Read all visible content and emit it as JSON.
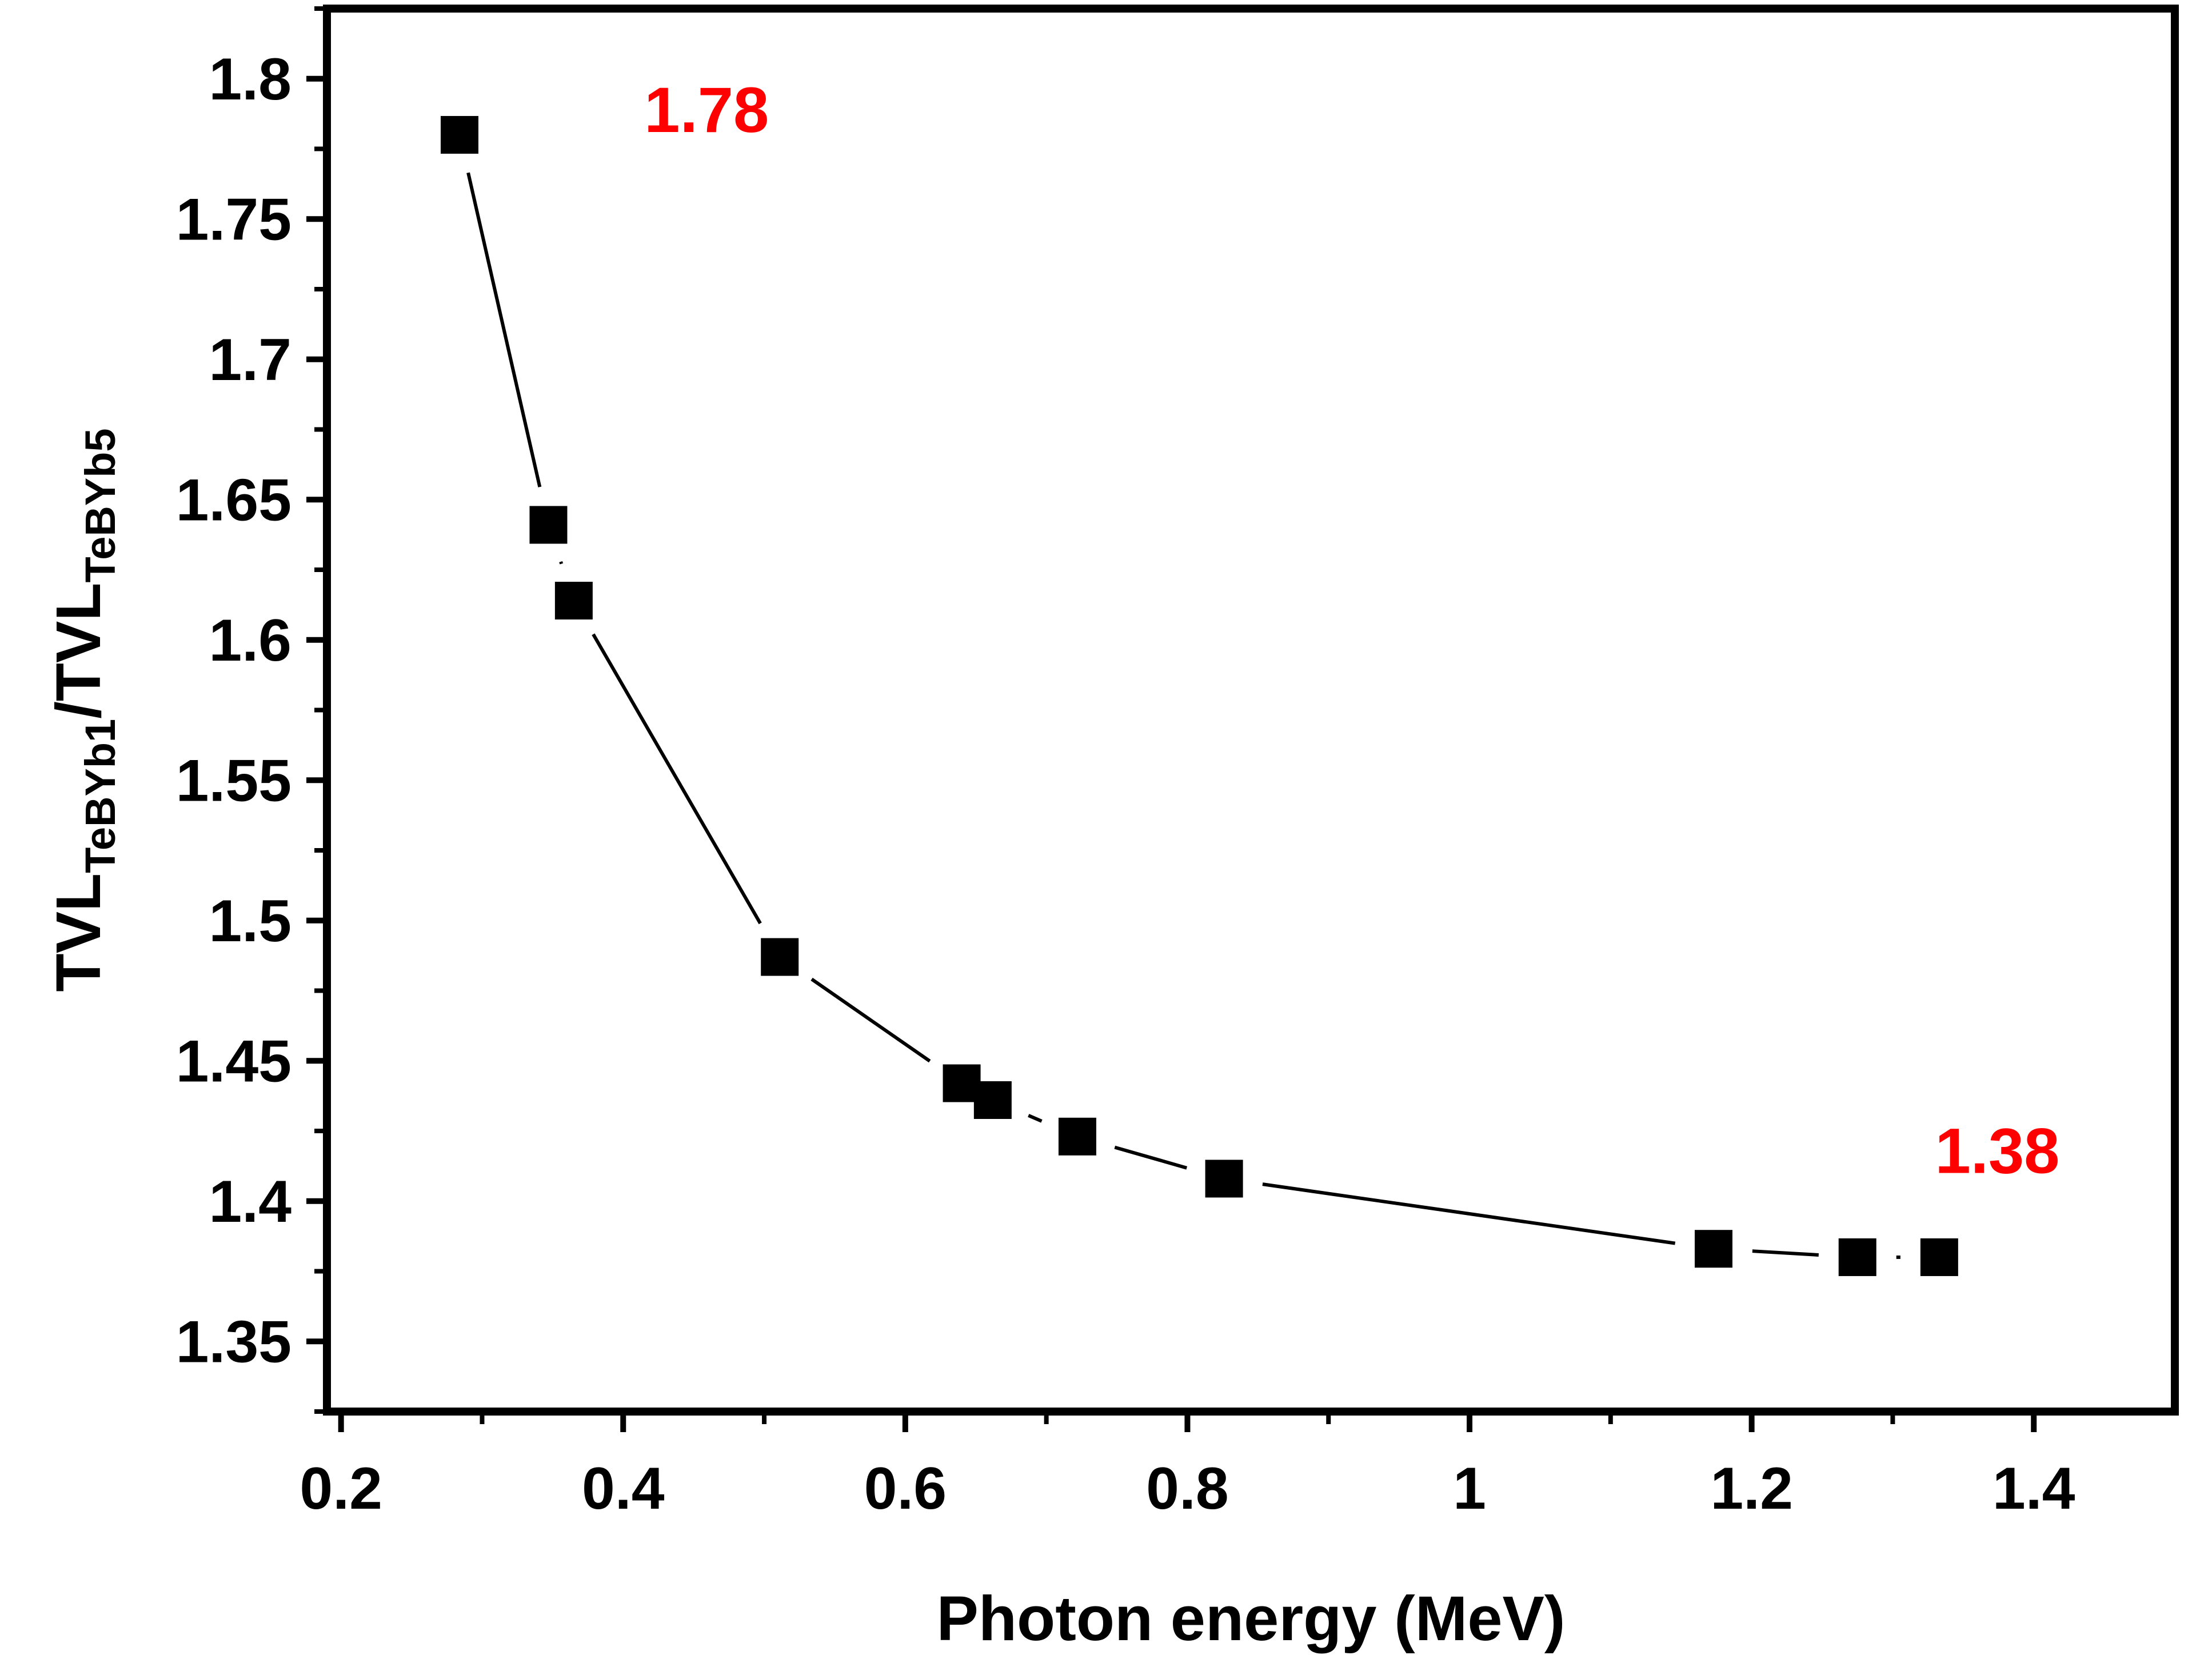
{
  "chart_data": {
    "type": "scatter",
    "title": "",
    "xlabel": "Photon energy (MeV)",
    "ylabel": {
      "parts": [
        {
          "text": "TVL",
          "sub": false
        },
        {
          "text": "TeBYb1",
          "sub": true
        },
        {
          "text": "/TVL",
          "sub": false
        },
        {
          "text": "TeBYb5",
          "sub": true
        }
      ]
    },
    "xlim": [
      0.19,
      1.5
    ],
    "ylim": [
      1.325,
      1.825
    ],
    "x_ticks": [
      0.2,
      0.4,
      0.6,
      0.8,
      1.0,
      1.2,
      1.4
    ],
    "x_tick_labels": [
      "0.2",
      "0.4",
      "0.6",
      "0.8",
      "1",
      "1.2",
      "1.4"
    ],
    "y_ticks": [
      1.35,
      1.4,
      1.45,
      1.5,
      1.55,
      1.6,
      1.65,
      1.7,
      1.75,
      1.8
    ],
    "y_tick_labels": [
      "1.35",
      "1.4",
      "1.45",
      "1.5",
      "1.55",
      "1.6",
      "1.65",
      "1.7",
      "1.75",
      "1.8"
    ],
    "grid": false,
    "series": [
      {
        "x": [
          0.284,
          0.347,
          0.365,
          0.511,
          0.64,
          0.662,
          0.722,
          0.826,
          1.173,
          1.275,
          1.333
        ],
        "y": [
          1.78,
          1.641,
          1.614,
          1.487,
          1.442,
          1.436,
          1.423,
          1.408,
          1.383,
          1.38,
          1.38
        ],
        "marker": "square",
        "color": "#000000"
      }
    ],
    "annotations": [
      {
        "text": "1.78",
        "x": 0.415,
        "y": 1.781,
        "color": "#ff0000"
      },
      {
        "text": "1.38",
        "x": 1.33,
        "y": 1.41,
        "color": "#ff0000"
      }
    ]
  }
}
